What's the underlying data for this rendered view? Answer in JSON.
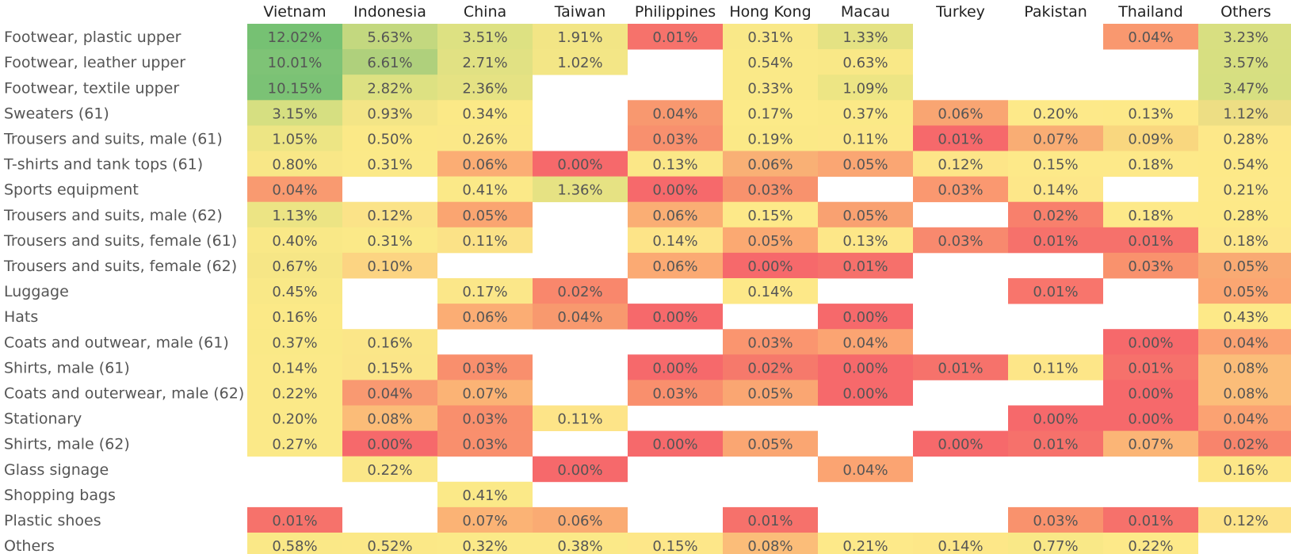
{
  "chart_data": {
    "type": "heatmap",
    "columns": [
      "Vietnam",
      "Indonesia",
      "China",
      "Taiwan",
      "Philippines",
      "Hong Kong",
      "Macau",
      "Turkey",
      "Pakistan",
      "Thailand",
      "Others"
    ],
    "rows": [
      "Footwear, plastic upper",
      "Footwear, leather upper",
      "Footwear, textile upper",
      "Sweaters (61)",
      "Trousers and suits, male (61)",
      "T-shirts and tank tops (61)",
      "Sports equipment",
      "Trousers and suits, male (62)",
      "Trousers and suits, female (61)",
      "Trousers and suits, female (62)",
      "Luggage",
      "Hats",
      "Coats and outwear, male (61)",
      "Shirts, male (61)",
      "Coats and outerwear, male (62)",
      "Stationary",
      "Shirts, male (62)",
      "Glass signage",
      "Shopping bags",
      "Plastic shoes",
      "Others"
    ],
    "values": [
      [
        "12.02%",
        "5.63%",
        "3.51%",
        "1.91%",
        "0.01%",
        "0.31%",
        "1.33%",
        null,
        null,
        "0.04%",
        "3.23%"
      ],
      [
        "10.01%",
        "6.61%",
        "2.71%",
        "1.02%",
        null,
        "0.54%",
        "0.63%",
        null,
        null,
        null,
        "3.57%"
      ],
      [
        "10.15%",
        "2.82%",
        "2.36%",
        null,
        null,
        "0.33%",
        "1.09%",
        null,
        null,
        null,
        "3.47%"
      ],
      [
        "3.15%",
        "0.93%",
        "0.34%",
        null,
        "0.04%",
        "0.17%",
        "0.37%",
        "0.06%",
        "0.20%",
        "0.13%",
        "1.12%"
      ],
      [
        "1.05%",
        "0.50%",
        "0.26%",
        null,
        "0.03%",
        "0.19%",
        "0.11%",
        "0.01%",
        "0.07%",
        "0.09%",
        "0.28%"
      ],
      [
        "0.80%",
        "0.31%",
        "0.06%",
        "0.00%",
        "0.13%",
        "0.06%",
        "0.05%",
        "0.12%",
        "0.15%",
        "0.18%",
        "0.54%"
      ],
      [
        "0.04%",
        null,
        "0.41%",
        "1.36%",
        "0.00%",
        "0.03%",
        null,
        "0.03%",
        "0.14%",
        null,
        "0.21%"
      ],
      [
        "1.13%",
        "0.12%",
        "0.05%",
        null,
        "0.06%",
        "0.15%",
        "0.05%",
        null,
        "0.02%",
        "0.18%",
        "0.28%"
      ],
      [
        "0.40%",
        "0.31%",
        "0.11%",
        null,
        "0.14%",
        "0.05%",
        "0.13%",
        "0.03%",
        "0.01%",
        "0.01%",
        "0.18%"
      ],
      [
        "0.67%",
        "0.10%",
        null,
        null,
        "0.06%",
        "0.00%",
        "0.01%",
        null,
        null,
        "0.03%",
        "0.05%"
      ],
      [
        "0.45%",
        null,
        "0.17%",
        "0.02%",
        null,
        "0.14%",
        null,
        null,
        "0.01%",
        null,
        "0.05%"
      ],
      [
        "0.16%",
        null,
        "0.06%",
        "0.04%",
        "0.00%",
        null,
        "0.00%",
        null,
        null,
        null,
        "0.43%"
      ],
      [
        "0.37%",
        "0.16%",
        null,
        null,
        null,
        "0.03%",
        "0.04%",
        null,
        null,
        "0.00%",
        "0.04%"
      ],
      [
        "0.14%",
        "0.15%",
        "0.03%",
        null,
        "0.00%",
        "0.02%",
        "0.00%",
        "0.01%",
        "0.11%",
        "0.01%",
        "0.08%"
      ],
      [
        "0.22%",
        "0.04%",
        "0.07%",
        null,
        "0.03%",
        "0.05%",
        "0.00%",
        null,
        null,
        "0.00%",
        "0.08%"
      ],
      [
        "0.20%",
        "0.08%",
        "0.03%",
        "0.11%",
        null,
        null,
        null,
        null,
        "0.00%",
        "0.00%",
        "0.04%"
      ],
      [
        "0.27%",
        "0.00%",
        "0.03%",
        null,
        "0.00%",
        "0.05%",
        null,
        "0.00%",
        "0.01%",
        "0.07%",
        "0.02%"
      ],
      [
        null,
        "0.22%",
        null,
        "0.00%",
        null,
        null,
        "0.04%",
        null,
        null,
        null,
        "0.16%"
      ],
      [
        null,
        null,
        "0.41%",
        null,
        null,
        null,
        null,
        null,
        null,
        null,
        null
      ],
      [
        "0.01%",
        null,
        "0.07%",
        "0.06%",
        null,
        "0.01%",
        null,
        null,
        "0.03%",
        "0.01%",
        "0.12%"
      ],
      [
        "0.58%",
        "0.52%",
        "0.32%",
        "0.38%",
        "0.15%",
        "0.08%",
        "0.21%",
        "0.14%",
        "0.77%",
        "0.22%",
        null
      ]
    ],
    "colors": [
      [
        "#76c173",
        "#c3d87f",
        "#dde182",
        "#f2e585",
        "#f6726b",
        "#f9e888",
        "#e4e283",
        null,
        null,
        "#f9986f",
        "#d8df81"
      ],
      [
        "#7ec376",
        "#afd07c",
        "#e1e183",
        "#f3e686",
        null,
        "#fae988",
        "#f9e887",
        null,
        null,
        null,
        "#d7df81"
      ],
      [
        "#7bc275",
        "#dde182",
        "#e5e283",
        null,
        null,
        "#fae988",
        "#ede584",
        null,
        null,
        null,
        "#d6df81"
      ],
      [
        "#d6df81",
        "#f3e586",
        "#fbe987",
        null,
        "#f8986f",
        "#fcea88",
        "#fbe987",
        "#f9a572",
        "#fde989",
        "#fde988",
        "#edde84"
      ],
      [
        "#ede584",
        "#fbe987",
        "#fbe888",
        null,
        "#f8906e",
        "#fbe987",
        "#fce888",
        "#f6696b",
        "#f9ad74",
        "#f9d77f",
        "#fde889"
      ],
      [
        "#f8e787",
        "#fbe988",
        "#fbad74",
        "#f6696b",
        "#fbe787",
        "#f9b075",
        "#faa673",
        "#fde588",
        "#fde989",
        "#fde989",
        "#fde988"
      ],
      [
        "#f99a70",
        null,
        "#fbe988",
        "#e6e283",
        "#f6696b",
        "#f8926d",
        null,
        "#fa9870",
        "#fde789",
        null,
        "#fde989"
      ],
      [
        "#ece484",
        "#fbe388",
        "#faa571",
        null,
        "#faae74",
        "#fde989",
        "#f9a171",
        null,
        "#f8806c",
        "#fde989",
        "#fde988"
      ],
      [
        "#f9e887",
        "#fbe988",
        "#fbe287",
        null,
        "#fde488",
        "#fba972",
        "#fde788",
        "#f8896e",
        "#f6716b",
        "#f6716b",
        "#fde689"
      ],
      [
        "#f6e686",
        "#fcd482",
        null,
        null,
        "#fbaa73",
        "#f6696b",
        "#f6706b",
        null,
        null,
        "#f9926d",
        "#f9aa73"
      ],
      [
        "#f9e887",
        null,
        "#fbe789",
        "#f9876c",
        null,
        "#fde888",
        null,
        null,
        "#f8756c",
        null,
        "#fba672"
      ],
      [
        "#fbe987",
        null,
        "#fbad74",
        "#f8996e",
        "#f6696b",
        null,
        "#f6696b",
        null,
        null,
        null,
        "#fde988"
      ],
      [
        "#fae987",
        "#fbe688",
        null,
        null,
        null,
        "#fa956f",
        "#fba472",
        null,
        null,
        "#f6696b",
        "#fba272"
      ],
      [
        "#fbe988",
        "#fbe588",
        "#f98f6d",
        null,
        "#f6696b",
        "#f6796b",
        "#f6696b",
        "#f6726b",
        "#fde688",
        "#f6716b",
        "#fbbd79"
      ],
      [
        "#fbe988",
        "#f99971",
        "#fbb375",
        null,
        "#f98f6d",
        "#faa672",
        "#f6696b",
        null,
        null,
        "#f6696b",
        "#fbbd79"
      ],
      [
        "#fbe988",
        "#fbbc78",
        "#f98f6d",
        "#fde488",
        null,
        null,
        null,
        null,
        "#f6696b",
        "#f6696b",
        "#fba272"
      ],
      [
        "#fbe988",
        "#f6696b",
        "#f98f6d",
        null,
        "#f6696b",
        "#faa672",
        null,
        "#f6696b",
        "#f6716b",
        "#fbb576",
        "#f8846c"
      ],
      [
        null,
        "#fbe788",
        null,
        "#f6696b",
        null,
        null,
        "#fba472",
        null,
        null,
        null,
        "#fde788"
      ],
      [
        null,
        null,
        "#fbe988",
        null,
        null,
        null,
        null,
        null,
        null,
        null,
        null
      ],
      [
        "#f6726b",
        null,
        "#fbb375",
        "#faab73",
        null,
        "#f6716b",
        null,
        null,
        "#f9926d",
        "#f6716b",
        "#fde388"
      ],
      [
        "#fae887",
        "#fbe887",
        "#fbe988",
        "#fbe988",
        "#fde789",
        "#fbbd79",
        "#fde989",
        "#fde788",
        "#f9e887",
        "#fde989",
        null
      ]
    ],
    "legend": "none",
    "grid": false
  }
}
